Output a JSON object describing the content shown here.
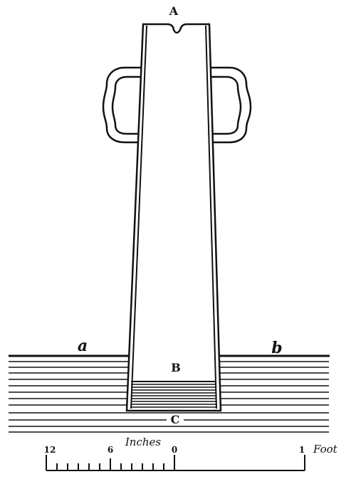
{
  "labels": {
    "top": "A",
    "water_surface": "B",
    "bottom": "C",
    "left_level": "a",
    "right_level": "b"
  },
  "scale": {
    "title": "Inches",
    "tick_labels": [
      "12",
      "6",
      "0"
    ],
    "right_label": "1",
    "unit": "Foot"
  }
}
